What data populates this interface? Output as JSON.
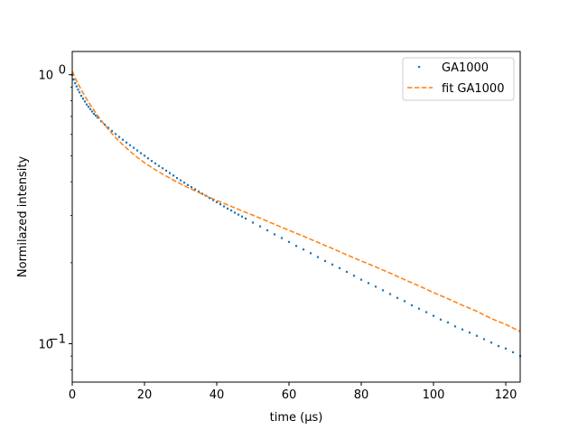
{
  "chart_data": {
    "type": "scatter",
    "xlabel": "time (μs)",
    "ylabel": "Normilazed intensity",
    "xlim": [
      0,
      124
    ],
    "ylim": [
      0.072,
      1.22
    ],
    "yscale": "log",
    "grid": false,
    "legend_position": "top-right",
    "x_ticks": [
      0,
      20,
      40,
      60,
      80,
      100,
      120
    ],
    "y_ticks": [
      {
        "value": 1.0,
        "label": "10^0"
      },
      {
        "value": 0.1,
        "label": "10^-1"
      }
    ],
    "series": [
      {
        "name": "GA1000",
        "style": "points",
        "color": "#1f77b4",
        "x": [
          0,
          0.4,
          0.8,
          1.2,
          1.6,
          2.0,
          2.5,
          3.0,
          3.5,
          4.0,
          4.5,
          5.0,
          5.5,
          6.0,
          6.5,
          7.0,
          8.0,
          9.0,
          10.0,
          11.0,
          12.0,
          13.0,
          14.0,
          15.0,
          16.0,
          17.0,
          18.0,
          19.0,
          20.0,
          21.0,
          22.0,
          23.0,
          24.0,
          25.0,
          26.0,
          27.0,
          28.0,
          29.0,
          30.0,
          31.0,
          32.0,
          33.0,
          34.0,
          35.0,
          36.0,
          37.0,
          38.0,
          39.0,
          40.0,
          41.0,
          42.0,
          43.0,
          44.0,
          45.0,
          46.0,
          47.0,
          48.0,
          50.0,
          52.0,
          54.0,
          56.0,
          58.0,
          60.0,
          62.0,
          64.0,
          66.0,
          68.0,
          70.0,
          72.0,
          74.0,
          76.0,
          78.0,
          80.0,
          82.0,
          84.0,
          86.0,
          88.0,
          90.0,
          92.0,
          94.0,
          96.0,
          98.0,
          100.0,
          102.0,
          104.0,
          106.0,
          108.0,
          110.0,
          112.0,
          114.0,
          116.0,
          118.0,
          120.0,
          122.0,
          124.0
        ],
        "y": [
          1.0,
          0.96,
          0.93,
          0.905,
          0.88,
          0.86,
          0.835,
          0.815,
          0.795,
          0.775,
          0.76,
          0.745,
          0.73,
          0.715,
          0.705,
          0.693,
          0.672,
          0.652,
          0.635,
          0.618,
          0.602,
          0.587,
          0.573,
          0.56,
          0.547,
          0.535,
          0.523,
          0.511,
          0.5,
          0.489,
          0.478,
          0.468,
          0.458,
          0.449,
          0.44,
          0.431,
          0.422,
          0.413,
          0.405,
          0.397,
          0.389,
          0.382,
          0.375,
          0.368,
          0.361,
          0.355,
          0.348,
          0.342,
          0.336,
          0.33,
          0.324,
          0.318,
          0.313,
          0.307,
          0.302,
          0.297,
          0.292,
          0.282,
          0.273,
          0.264,
          0.255,
          0.247,
          0.239,
          0.231,
          0.224,
          0.217,
          0.21,
          0.203,
          0.197,
          0.191,
          0.185,
          0.179,
          0.173,
          0.168,
          0.163,
          0.158,
          0.153,
          0.148,
          0.144,
          0.139,
          0.135,
          0.131,
          0.127,
          0.123,
          0.12,
          0.116,
          0.113,
          0.11,
          0.107,
          0.104,
          0.101,
          0.098,
          0.096,
          0.093,
          0.09
        ]
      },
      {
        "name": "fit GA1000",
        "style": "dashed-line",
        "color": "#ff7f0e",
        "x": [
          0,
          1,
          2,
          3,
          4,
          5,
          6,
          7,
          8,
          10,
          12,
          14,
          16,
          18,
          20,
          22,
          24,
          26,
          28,
          30,
          32,
          34,
          36,
          38,
          40,
          44,
          48,
          52,
          56,
          60,
          64,
          68,
          72,
          76,
          80,
          84,
          88,
          92,
          96,
          100,
          104,
          108,
          112,
          116,
          120,
          124
        ],
        "y": [
          1.03,
          0.96,
          0.905,
          0.855,
          0.812,
          0.773,
          0.738,
          0.706,
          0.677,
          0.626,
          0.584,
          0.549,
          0.519,
          0.493,
          0.471,
          0.452,
          0.435,
          0.42,
          0.406,
          0.393,
          0.381,
          0.37,
          0.36,
          0.35,
          0.341,
          0.324,
          0.308,
          0.293,
          0.278,
          0.264,
          0.251,
          0.238,
          0.226,
          0.214,
          0.203,
          0.193,
          0.183,
          0.173,
          0.164,
          0.155,
          0.147,
          0.139,
          0.132,
          0.124,
          0.118,
          0.111
        ]
      }
    ]
  }
}
